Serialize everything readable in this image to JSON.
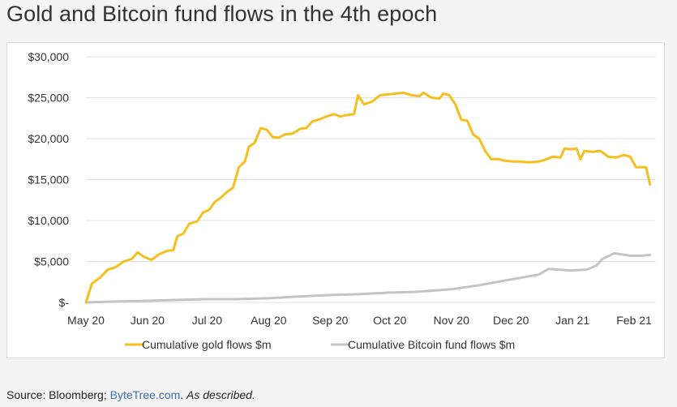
{
  "title": "Gold and Bitcoin fund flows in the 4th epoch",
  "source": {
    "prefix": "Source: Bloomberg; ",
    "link_text": "ByteTree.com",
    "period": ".",
    "suffix": "As described."
  },
  "colors": {
    "gold": "#f5bf1e",
    "bitcoin": "#c4c4c4",
    "grid": "#e2e2e2",
    "link": "#3a6db5"
  },
  "chart_data": {
    "type": "line",
    "title": "Gold and Bitcoin fund flows in the 4th epoch",
    "xlabel": "",
    "ylabel": "",
    "ylim": [
      0,
      30000
    ],
    "yticks": [
      0,
      5000,
      10000,
      15000,
      20000,
      25000,
      30000
    ],
    "ytick_labels": [
      "$-",
      "$5,000",
      "$10,000",
      "$15,000",
      "$20,000",
      "$25,000",
      "$30,000"
    ],
    "xlim": [
      "2020-05-01",
      "2021-02-12"
    ],
    "xticks": [
      "2020-05-01",
      "2020-06-01",
      "2020-07-01",
      "2020-08-01",
      "2020-09-01",
      "2020-10-01",
      "2020-11-01",
      "2020-12-01",
      "2021-01-01",
      "2021-02-01"
    ],
    "xtick_labels": [
      "May 20",
      "Jun 20",
      "Jul 20",
      "Aug 20",
      "Sep 20",
      "Oct 20",
      "Nov 20",
      "Dec 20",
      "Jan 21",
      "Feb 21"
    ],
    "grid": true,
    "legend_position": "bottom",
    "series": [
      {
        "name": "Cumulative gold flows $m",
        "color": "#f5bf1e",
        "points": [
          [
            "2020-05-01",
            0
          ],
          [
            "2020-05-04",
            2300
          ],
          [
            "2020-05-08",
            3000
          ],
          [
            "2020-05-12",
            4000
          ],
          [
            "2020-05-16",
            4300
          ],
          [
            "2020-05-20",
            5000
          ],
          [
            "2020-05-24",
            5300
          ],
          [
            "2020-05-27",
            6100
          ],
          [
            "2020-05-30",
            5600
          ],
          [
            "2020-06-03",
            5200
          ],
          [
            "2020-06-07",
            5900
          ],
          [
            "2020-06-11",
            6300
          ],
          [
            "2020-06-14",
            6400
          ],
          [
            "2020-06-16",
            8100
          ],
          [
            "2020-06-19",
            8400
          ],
          [
            "2020-06-22",
            9600
          ],
          [
            "2020-06-26",
            9900
          ],
          [
            "2020-06-29",
            11000
          ],
          [
            "2020-07-02",
            11300
          ],
          [
            "2020-07-05",
            12300
          ],
          [
            "2020-07-08",
            12800
          ],
          [
            "2020-07-11",
            13500
          ],
          [
            "2020-07-14",
            14000
          ],
          [
            "2020-07-17",
            16500
          ],
          [
            "2020-07-20",
            17200
          ],
          [
            "2020-07-22",
            19000
          ],
          [
            "2020-07-25",
            19500
          ],
          [
            "2020-07-28",
            21300
          ],
          [
            "2020-07-31",
            21100
          ],
          [
            "2020-08-03",
            20200
          ],
          [
            "2020-08-06",
            20100
          ],
          [
            "2020-08-09",
            20500
          ],
          [
            "2020-08-13",
            20600
          ],
          [
            "2020-08-17",
            21200
          ],
          [
            "2020-08-20",
            21300
          ],
          [
            "2020-08-23",
            22100
          ],
          [
            "2020-08-27",
            22400
          ],
          [
            "2020-08-30",
            22700
          ],
          [
            "2020-09-03",
            23000
          ],
          [
            "2020-09-06",
            22700
          ],
          [
            "2020-09-10",
            22900
          ],
          [
            "2020-09-13",
            23000
          ],
          [
            "2020-09-15",
            25300
          ],
          [
            "2020-09-18",
            24200
          ],
          [
            "2020-09-22",
            24500
          ],
          [
            "2020-09-26",
            25300
          ],
          [
            "2020-09-30",
            25400
          ],
          [
            "2020-10-04",
            25500
          ],
          [
            "2020-10-08",
            25600
          ],
          [
            "2020-10-12",
            25300
          ],
          [
            "2020-10-16",
            25200
          ],
          [
            "2020-10-18",
            25600
          ],
          [
            "2020-10-22",
            25000
          ],
          [
            "2020-10-26",
            24900
          ],
          [
            "2020-10-28",
            25500
          ],
          [
            "2020-10-31",
            25300
          ],
          [
            "2020-11-03",
            24200
          ],
          [
            "2020-11-06",
            22300
          ],
          [
            "2020-11-09",
            22200
          ],
          [
            "2020-11-12",
            20500
          ],
          [
            "2020-11-15",
            20000
          ],
          [
            "2020-11-18",
            18500
          ],
          [
            "2020-11-21",
            17500
          ],
          [
            "2020-11-25",
            17500
          ],
          [
            "2020-11-28",
            17300
          ],
          [
            "2020-12-02",
            17200
          ],
          [
            "2020-12-06",
            17200
          ],
          [
            "2020-12-10",
            17100
          ],
          [
            "2020-12-15",
            17200
          ],
          [
            "2020-12-18",
            17400
          ],
          [
            "2020-12-22",
            17800
          ],
          [
            "2020-12-26",
            17700
          ],
          [
            "2020-12-28",
            18800
          ],
          [
            "2020-12-31",
            18700
          ],
          [
            "2021-01-03",
            18800
          ],
          [
            "2021-01-05",
            17500
          ],
          [
            "2021-01-07",
            18500
          ],
          [
            "2021-01-11",
            18400
          ],
          [
            "2021-01-15",
            18500
          ],
          [
            "2021-01-19",
            17800
          ],
          [
            "2021-01-23",
            17700
          ],
          [
            "2021-01-27",
            18000
          ],
          [
            "2021-01-30",
            17800
          ],
          [
            "2021-02-02",
            16500
          ],
          [
            "2021-02-07",
            16500
          ],
          [
            "2021-02-09",
            14400
          ]
        ]
      },
      {
        "name": "Cumulative Bitcoin fund flows $m",
        "color": "#c4c4c4",
        "points": [
          [
            "2020-05-01",
            0
          ],
          [
            "2020-05-15",
            100
          ],
          [
            "2020-06-01",
            200
          ],
          [
            "2020-06-15",
            300
          ],
          [
            "2020-07-01",
            400
          ],
          [
            "2020-07-15",
            400
          ],
          [
            "2020-08-01",
            500
          ],
          [
            "2020-08-15",
            700
          ],
          [
            "2020-09-01",
            900
          ],
          [
            "2020-09-15",
            1000
          ],
          [
            "2020-10-01",
            1200
          ],
          [
            "2020-10-15",
            1300
          ],
          [
            "2020-11-01",
            1600
          ],
          [
            "2020-11-15",
            2100
          ],
          [
            "2020-12-01",
            2800
          ],
          [
            "2020-12-15",
            3400
          ],
          [
            "2020-12-20",
            4100
          ],
          [
            "2020-12-31",
            3900
          ],
          [
            "2021-01-08",
            4000
          ],
          [
            "2021-01-13",
            4500
          ],
          [
            "2021-01-16",
            5300
          ],
          [
            "2021-01-22",
            6000
          ],
          [
            "2021-01-30",
            5700
          ],
          [
            "2021-02-05",
            5700
          ],
          [
            "2021-02-09",
            5800
          ]
        ]
      }
    ]
  }
}
